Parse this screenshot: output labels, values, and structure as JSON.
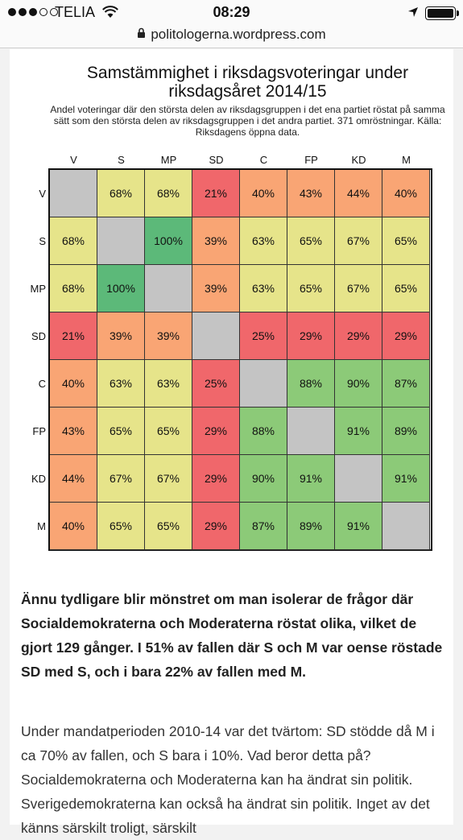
{
  "status": {
    "carrier": "TELIA",
    "time": "08:29"
  },
  "browser": {
    "url": "politologerna.wordpress.com"
  },
  "article": {
    "heading_paragraph": "Ännu tydligare blir mönstret om man isolerar de frågor där Socialdemokraterna och Moderaterna röstat olika, vilket de gjort 129 gånger. I 51% av fallen där S och M var oense röstade SD med S, och i bara 22% av fallen med M.",
    "body_paragraph": "Under mandatperioden 2010-14 var det tvärtom: SD stödde då M i ca 70% av fallen, och S bara i 10%. Vad beror detta på? Socialdemokraterna och Moderaterna kan ha ändrat sin politik. Sverigedemokraterna kan också ha ändrat sin politik. Inget av det känns särskilt troligt, särskilt"
  },
  "chart_data": {
    "type": "heatmap",
    "title": "Samstämmighet i riksdagsvoteringar under riksdagsåret 2014/15",
    "subtitle": "Andel voteringar där den största delen av riksdagsgruppen i det ena partiet röstat på samma sätt som den största delen av riksdagsgruppen i det andra partiet. 371 omröstningar. Källa: Riksdagens öppna data.",
    "columns": [
      "V",
      "S",
      "MP",
      "SD",
      "C",
      "FP",
      "KD",
      "M"
    ],
    "rows": [
      "V",
      "S",
      "MP",
      "SD",
      "C",
      "FP",
      "KD",
      "M"
    ],
    "values": [
      [
        null,
        68,
        68,
        21,
        40,
        43,
        44,
        40
      ],
      [
        68,
        null,
        100,
        39,
        63,
        65,
        67,
        65
      ],
      [
        68,
        100,
        null,
        39,
        63,
        65,
        67,
        65
      ],
      [
        21,
        39,
        39,
        null,
        25,
        29,
        29,
        29
      ],
      [
        40,
        63,
        63,
        25,
        null,
        88,
        90,
        87
      ],
      [
        43,
        65,
        65,
        29,
        88,
        null,
        91,
        89
      ],
      [
        44,
        67,
        67,
        29,
        90,
        91,
        null,
        91
      ],
      [
        40,
        65,
        65,
        29,
        87,
        89,
        91,
        null
      ]
    ],
    "value_suffix": "%",
    "colors": {
      "diagonal": "#c4c4c4",
      "low": "#f0676b",
      "mid_low": "#f9a574",
      "mid": "#f7d784",
      "mid_high": "#e6e48a",
      "high": "#8cca78",
      "top": "#5cb979"
    }
  }
}
